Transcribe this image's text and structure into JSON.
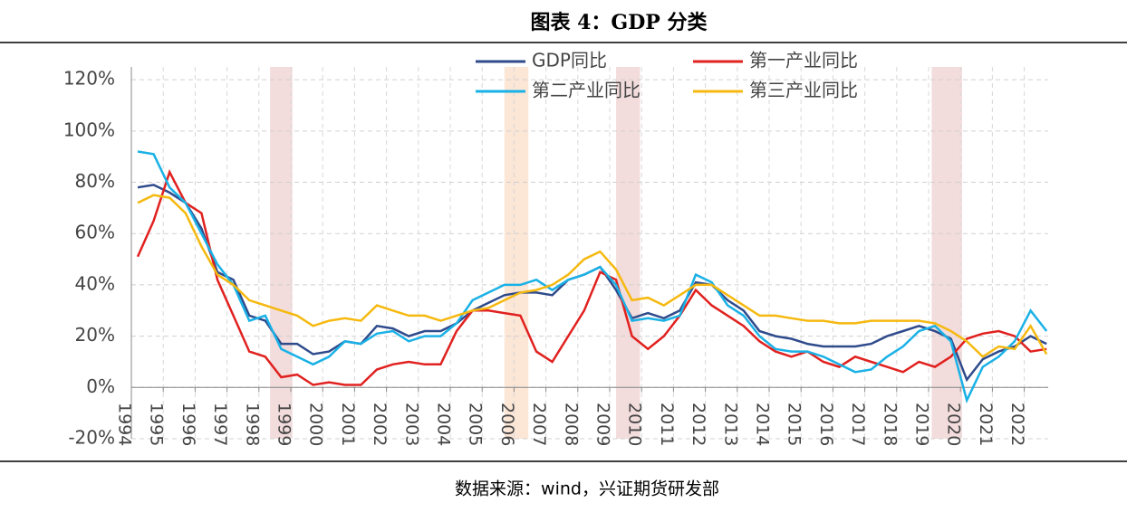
{
  "chart_data": {
    "type": "line",
    "title": "图表 4：GDP 分类",
    "source": "数据来源：wind，兴证期货研发部",
    "x": [
      1994.2,
      1994.7,
      1995.2,
      1995.7,
      1996.2,
      1996.7,
      1997.2,
      1997.7,
      1998.2,
      1998.7,
      1999.2,
      1999.7,
      2000.2,
      2000.7,
      2001.2,
      2001.7,
      2002.2,
      2002.7,
      2003.2,
      2003.7,
      2004.2,
      2004.7,
      2005.2,
      2005.7,
      2006.2,
      2006.7,
      2007.2,
      2007.7,
      2008.2,
      2008.7,
      2009.2,
      2009.7,
      2010.2,
      2010.7,
      2011.2,
      2011.7,
      2012.2,
      2012.7,
      2013.2,
      2013.7,
      2014.2,
      2014.7,
      2015.2,
      2015.7,
      2016.2,
      2016.7,
      2017.2,
      2017.7,
      2018.2,
      2018.7,
      2019.2,
      2019.7,
      2020.2,
      2020.7,
      2021.2,
      2021.7,
      2022.2,
      2022.7
    ],
    "series": [
      {
        "name": "GDP同比",
        "color": "#2f4b8c",
        "values": [
          78,
          79,
          76,
          72,
          62,
          45,
          42,
          28,
          26,
          17,
          17,
          13,
          14,
          18,
          17,
          24,
          23,
          20,
          22,
          22,
          25,
          30,
          33,
          36,
          37,
          37,
          36,
          42,
          44,
          47,
          38,
          27,
          29,
          27,
          30,
          41,
          40,
          34,
          30,
          22,
          20,
          19,
          17,
          16,
          16,
          16,
          17,
          20,
          22,
          24,
          22,
          19,
          3,
          11,
          14,
          16,
          20,
          17
        ]
      },
      {
        "name": "第一产业同比",
        "color": "#e0211f",
        "values": [
          51,
          65,
          84,
          72,
          68,
          42,
          28,
          14,
          12,
          4,
          5,
          1,
          2,
          1,
          1,
          7,
          9,
          10,
          9,
          9,
          22,
          30,
          30,
          29,
          28,
          14,
          10,
          20,
          30,
          45,
          42,
          20,
          15,
          20,
          28,
          38,
          32,
          28,
          24,
          18,
          14,
          12,
          14,
          10,
          8,
          12,
          10,
          8,
          6,
          10,
          8,
          12,
          19,
          21,
          22,
          20,
          14,
          15
        ]
      },
      {
        "name": "第二产业同比",
        "color": "#1ab1e6",
        "values": [
          92,
          91,
          78,
          72,
          60,
          48,
          40,
          26,
          28,
          15,
          12,
          9,
          12,
          18,
          17,
          21,
          22,
          18,
          20,
          20,
          25,
          34,
          37,
          40,
          40,
          42,
          38,
          42,
          44,
          47,
          40,
          26,
          27,
          26,
          28,
          44,
          41,
          32,
          28,
          20,
          15,
          14,
          14,
          12,
          9,
          6,
          7,
          12,
          16,
          22,
          24,
          18,
          -5,
          8,
          12,
          18,
          30,
          22
        ]
      },
      {
        "name": "第三产业同比",
        "color": "#f5b90f",
        "values": [
          72,
          75,
          74,
          68,
          55,
          44,
          40,
          34,
          32,
          30,
          28,
          24,
          26,
          27,
          26,
          32,
          30,
          28,
          28,
          26,
          28,
          30,
          31,
          34,
          37,
          38,
          40,
          44,
          50,
          53,
          46,
          34,
          35,
          32,
          36,
          40,
          40,
          36,
          32,
          28,
          28,
          27,
          26,
          26,
          25,
          25,
          26,
          26,
          26,
          26,
          25,
          22,
          18,
          12,
          16,
          15,
          24,
          13
        ]
      }
    ],
    "bands": [
      [
        1998.35,
        1999.05
      ],
      [
        2005.7,
        2006.45
      ],
      [
        2009.2,
        2009.95
      ],
      [
        2019.1,
        2020.05
      ]
    ],
    "band_colors": [
      "#f0d3d3",
      "#fbe0cc",
      "#f0d3d3",
      "#f0d3d3"
    ],
    "xlim": [
      1994,
      2022.75
    ],
    "xticks": [
      1994,
      1995,
      1996,
      1997,
      1998,
      1999,
      2000,
      2001,
      2002,
      2003,
      2004,
      2005,
      2006,
      2007,
      2008,
      2009,
      2010,
      2011,
      2012,
      2013,
      2014,
      2015,
      2016,
      2017,
      2018,
      2019,
      2020,
      2021,
      2022
    ],
    "ylim": [
      -20,
      125
    ],
    "yticks": [
      {
        "value": -20,
        "label": "-20%"
      },
      {
        "value": 0,
        "label": "0%"
      },
      {
        "value": 20,
        "label": "20%"
      },
      {
        "value": 40,
        "label": "40%"
      },
      {
        "value": 60,
        "label": "60%"
      },
      {
        "value": 80,
        "label": "80%"
      },
      {
        "value": 100,
        "label": "100%"
      },
      {
        "value": 120,
        "label": "120%"
      }
    ],
    "grid": true
  }
}
